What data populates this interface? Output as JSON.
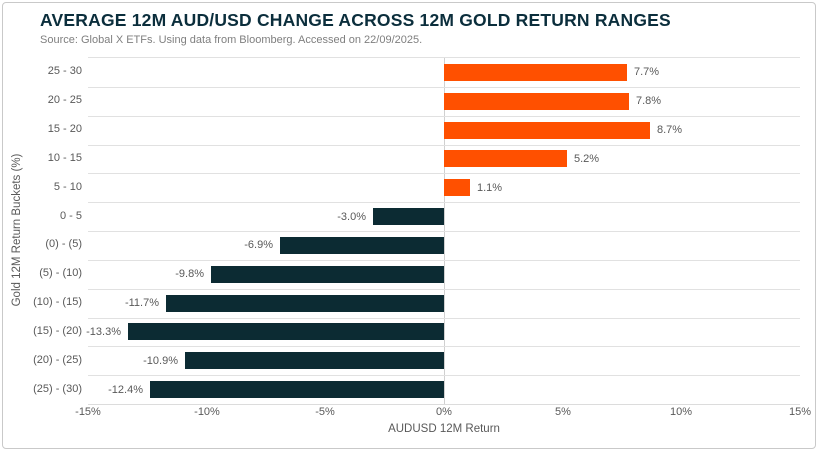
{
  "header": {
    "title": "AVERAGE 12M AUD/USD CHANGE ACROSS 12M GOLD RETURN RANGES",
    "source": "Source: Global X ETFs. Using data from Bloomberg. Accessed on 22/09/2025."
  },
  "colors": {
    "positive_bar": "#FF5000",
    "negative_bar": "#0C2B33",
    "title_text": "#0B2E3C",
    "axis_text": "#595959",
    "gridline": "#E1E1E1",
    "zero_line": "#D0D0D0",
    "card_border": "#C9C9C9"
  },
  "chart_data": {
    "type": "bar",
    "orientation": "horizontal",
    "title": "AVERAGE 12M AUD/USD CHANGE ACROSS 12M GOLD RETURN RANGES",
    "subtitle": "Source: Global X ETFs. Using data from Bloomberg. Accessed on 22/09/2025.",
    "categories": [
      "25 - 30",
      "20 - 25",
      "15 - 20",
      "10 - 15",
      "5 - 10",
      "0 - 5",
      "(0) - (5)",
      "(5) - (10)",
      "(10) - (15)",
      "(15) - (20)",
      "(20) - (25)",
      "(25) - (30)"
    ],
    "values": [
      7.7,
      7.8,
      8.7,
      5.2,
      1.1,
      -3.0,
      -6.9,
      -9.8,
      -11.7,
      -13.3,
      -10.9,
      -12.4
    ],
    "value_labels": [
      "7.7%",
      "7.8%",
      "8.7%",
      "5.2%",
      "1.1%",
      "-3.0%",
      "-6.9%",
      "-9.8%",
      "-11.7%",
      "-13.3%",
      "-10.9%",
      "-12.4%"
    ],
    "xlabel": "AUDUSD 12M Return",
    "ylabel": "Gold 12M Return Buckets (%)",
    "xlim": [
      -15,
      15
    ],
    "x_ticks": [
      {
        "value": -15,
        "label": "-15%"
      },
      {
        "value": -10,
        "label": "-10%"
      },
      {
        "value": -5,
        "label": "-5%"
      },
      {
        "value": 0,
        "label": "0%"
      },
      {
        "value": 5,
        "label": "5%"
      },
      {
        "value": 10,
        "label": "10%"
      },
      {
        "value": 15,
        "label": "15%"
      }
    ],
    "grid": "horizontal row separators and vertical zero line",
    "legend": "none"
  }
}
